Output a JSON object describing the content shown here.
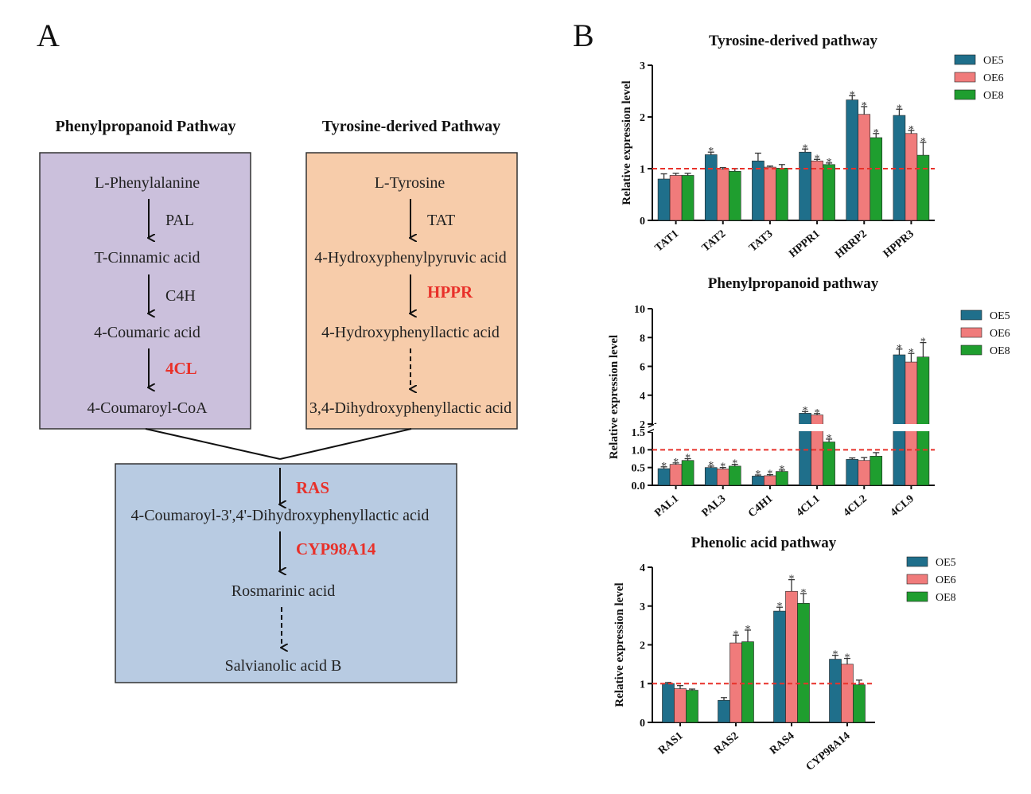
{
  "panel_a": {
    "label": "A",
    "phenylpropanoid": {
      "title": "Phenylpropanoid Pathway",
      "steps": [
        "L-Phenylalanine",
        "T-Cinnamic acid",
        "4-Coumaric acid",
        "4-Coumaroyl-CoA"
      ],
      "enzymes": [
        "PAL",
        "C4H",
        "4CL"
      ]
    },
    "tyrosine": {
      "title": "Tyrosine-derived Pathway",
      "steps": [
        "L-Tyrosine",
        "4-Hydroxyphenylpyruvic acid",
        "4-Hydroxyphenyllactic acid",
        "3,4-Dihydroxyphenyllactic acid"
      ],
      "enzymes": [
        "TAT",
        "HPPR"
      ]
    },
    "merged": {
      "enzyme_ras": "RAS",
      "intermediate": "4-Coumaroyl-3',4'-Dihydroxyphenyllactic acid",
      "enzyme_cyp": "CYP98A14",
      "product1": "Rosmarinic acid",
      "product2": "Salvianolic acid B"
    },
    "colors": {
      "phenyl_box": "#cbc0dc",
      "tyrosine_box": "#f7ccaa",
      "merged_box": "#b8cbe2",
      "highlight": "#e8312a"
    }
  },
  "panel_b": {
    "label": "B",
    "ylabel": "Relative expression level",
    "series_names": [
      "OE5",
      "OE6",
      "OE8"
    ],
    "series_colors": [
      "#1f6f8b",
      "#f07b7b",
      "#1f9e2f"
    ],
    "reference_line": 1
  },
  "chart_data": [
    {
      "type": "bar",
      "title": "Tyrosine-derived pathway",
      "ylabel": "Relative expression level",
      "categories": [
        "TAT1",
        "TAT2",
        "TAT3",
        "HPPR1",
        "HRRP2",
        "HPPR3"
      ],
      "yticks": [
        0,
        1,
        2,
        3
      ],
      "ylim": [
        0,
        3
      ],
      "series": [
        {
          "name": "OE5",
          "values": [
            0.8,
            1.27,
            1.15,
            1.32,
            2.33,
            2.03
          ],
          "errors": [
            0.1,
            0.05,
            0.15,
            0.06,
            0.08,
            0.12
          ]
        },
        {
          "name": "OE6",
          "values": [
            0.87,
            0.99,
            1.03,
            1.15,
            2.05,
            1.68
          ],
          "errors": [
            0.04,
            0.03,
            0.02,
            0.03,
            0.15,
            0.06
          ]
        },
        {
          "name": "OE8",
          "values": [
            0.87,
            0.95,
            1.01,
            1.08,
            1.6,
            1.26
          ],
          "errors": [
            0.04,
            0.05,
            0.07,
            0.03,
            0.08,
            0.25
          ]
        }
      ],
      "significant": [
        [
          false,
          true,
          false,
          true,
          true,
          true
        ],
        [
          false,
          false,
          false,
          true,
          true,
          true
        ],
        [
          false,
          false,
          false,
          true,
          true,
          true
        ]
      ],
      "legend_position": "top-right"
    },
    {
      "type": "bar",
      "title": "Phenylpropanoid pathway",
      "ylabel": "Relative expression level",
      "categories": [
        "PAL1",
        "PAL3",
        "C4H1",
        "4CL1",
        "4CL2",
        "4CL9"
      ],
      "yticks": [
        "0.0",
        "0.5",
        "1.0",
        "1.5",
        "2",
        "4",
        "6",
        "8",
        "10"
      ],
      "ylim": [
        0,
        10
      ],
      "axis_break": [
        1.5,
        2
      ],
      "series": [
        {
          "name": "OE5",
          "values": [
            0.47,
            0.5,
            0.26,
            2.75,
            0.73,
            6.8
          ],
          "errors": [
            0.05,
            0.04,
            0.03,
            0.12,
            0.04,
            0.4
          ]
        },
        {
          "name": "OE6",
          "values": [
            0.59,
            0.46,
            0.27,
            2.63,
            0.7,
            6.3
          ],
          "errors": [
            0.04,
            0.04,
            0.03,
            0.1,
            0.08,
            0.6
          ]
        },
        {
          "name": "OE8",
          "values": [
            0.7,
            0.54,
            0.39,
            1.22,
            0.82,
            6.65
          ],
          "errors": [
            0.05,
            0.05,
            0.04,
            0.08,
            0.1,
            1.0
          ]
        }
      ],
      "significant": [
        [
          true,
          true,
          true,
          true,
          false,
          true
        ],
        [
          true,
          true,
          true,
          true,
          false,
          true
        ],
        [
          true,
          true,
          true,
          true,
          false,
          true
        ]
      ],
      "legend_position": "top-right"
    },
    {
      "type": "bar",
      "title": "Phenolic acid pathway",
      "ylabel": "Relative expression level",
      "categories": [
        "RAS1",
        "RAS2",
        "RAS4",
        "CYP98A14"
      ],
      "yticks": [
        0,
        1,
        2,
        3,
        4
      ],
      "ylim": [
        0,
        4
      ],
      "series": [
        {
          "name": "OE5",
          "values": [
            1.0,
            0.57,
            2.87,
            1.63
          ],
          "errors": [
            0.03,
            0.07,
            0.1,
            0.1
          ]
        },
        {
          "name": "OE6",
          "values": [
            0.87,
            2.05,
            3.38,
            1.5
          ],
          "errors": [
            0.08,
            0.2,
            0.3,
            0.15
          ]
        },
        {
          "name": "OE8",
          "values": [
            0.83,
            2.08,
            3.07,
            0.97
          ],
          "errors": [
            0.03,
            0.3,
            0.25,
            0.12
          ]
        }
      ],
      "significant": [
        [
          false,
          false,
          true,
          true
        ],
        [
          false,
          true,
          true,
          true
        ],
        [
          false,
          true,
          true,
          false
        ]
      ],
      "legend_position": "top-right"
    }
  ]
}
